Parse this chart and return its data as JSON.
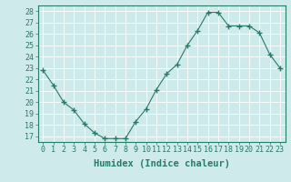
{
  "x": [
    0,
    1,
    2,
    3,
    4,
    5,
    6,
    7,
    8,
    9,
    10,
    11,
    12,
    13,
    14,
    15,
    16,
    17,
    18,
    19,
    20,
    21,
    22,
    23
  ],
  "y": [
    22.8,
    21.5,
    20.0,
    19.3,
    18.1,
    17.3,
    16.8,
    16.8,
    16.8,
    18.3,
    19.4,
    21.1,
    22.5,
    23.3,
    25.0,
    26.3,
    27.9,
    27.9,
    26.7,
    26.7,
    26.7,
    26.1,
    24.2,
    23.0
  ],
  "line_color": "#2a7a6a",
  "marker": "+",
  "marker_size": 5,
  "bg_color": "#ceeaea",
  "grid_color": "#b0d8d8",
  "xlabel": "Humidex (Indice chaleur)",
  "ylabel_ticks": [
    17,
    18,
    19,
    20,
    21,
    22,
    23,
    24,
    25,
    26,
    27,
    28
  ],
  "xlim": [
    -0.5,
    23.5
  ],
  "ylim": [
    16.5,
    28.5
  ],
  "xticks": [
    0,
    1,
    2,
    3,
    4,
    5,
    6,
    7,
    8,
    9,
    10,
    11,
    12,
    13,
    14,
    15,
    16,
    17,
    18,
    19,
    20,
    21,
    22,
    23
  ],
  "xtick_labels": [
    "0",
    "1",
    "2",
    "3",
    "4",
    "5",
    "6",
    "7",
    "8",
    "9",
    "10",
    "11",
    "12",
    "13",
    "14",
    "15",
    "16",
    "17",
    "18",
    "19",
    "20",
    "21",
    "22",
    "23"
  ],
  "font_color": "#2a7a6a",
  "tick_fontsize": 6,
  "xlabel_fontsize": 7.5
}
